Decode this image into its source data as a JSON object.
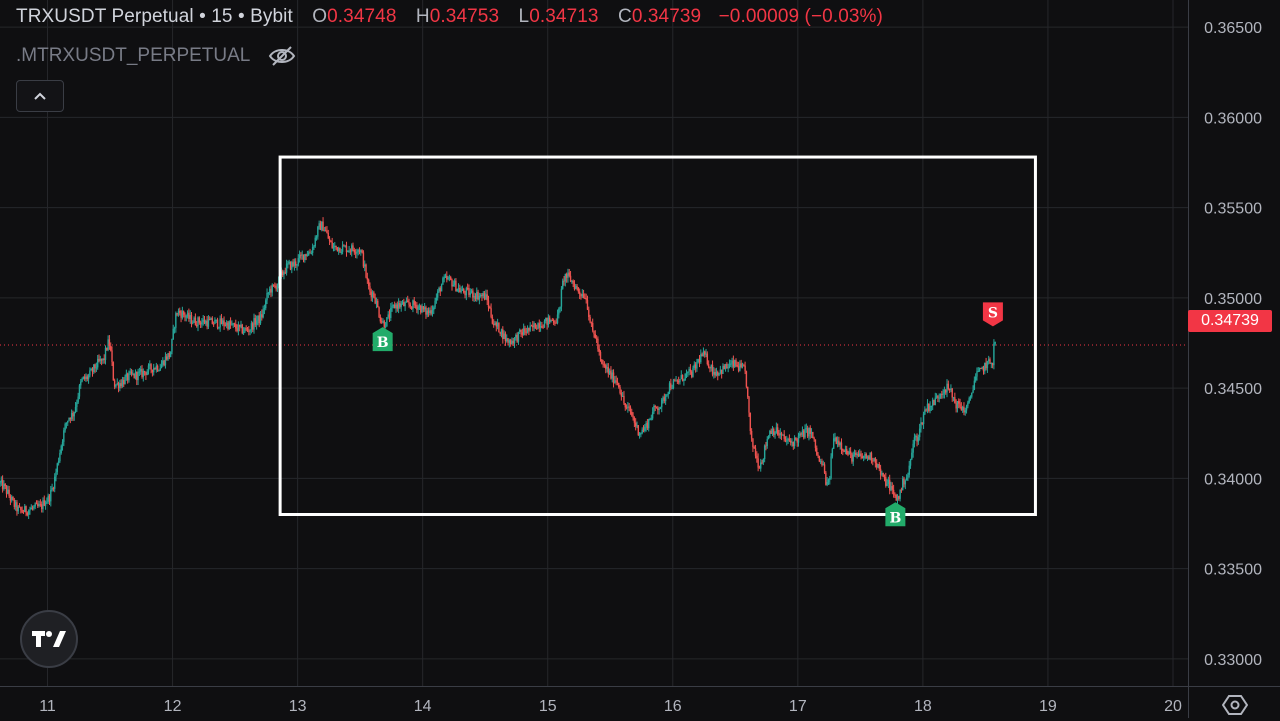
{
  "header": {
    "symbol": "TRXUSDT Perpetual",
    "interval": "15",
    "exchange": "Bybit",
    "open_label": "O",
    "open": "0.34748",
    "high_label": "H",
    "high": "0.34753",
    "low_label": "L",
    "low": "0.34713",
    "close_label": "C",
    "close": "0.34739",
    "change": "−0.00009 (−0.03%)"
  },
  "indicator": {
    "name": ".MTRXUSDT_PERPETUAL",
    "visibility_icon": "eye-slash-icon"
  },
  "collapse_icon": "chevron-up-icon",
  "logo_icon": "tradingview-logo-icon",
  "settings_icon": "settings-icon",
  "last_price_label": "0.34739",
  "colors": {
    "up": "#26a69a",
    "down": "#ef5350",
    "price_line": "#f23645",
    "grid": "#26272b",
    "buy": "#22ab6a",
    "sell": "#f23645",
    "box": "#ffffff"
  },
  "chart_data": {
    "type": "candlestick",
    "y_ticks": [
      "0.36500",
      "0.36000",
      "0.35500",
      "0.35000",
      "0.34500",
      "0.34000",
      "0.33500",
      "0.33000"
    ],
    "x_ticks": [
      "11",
      "12",
      "13",
      "14",
      "15",
      "16",
      "17",
      "18",
      "19",
      "20"
    ],
    "ylim": [
      0.3285,
      0.3665
    ],
    "xlim": [
      10.62,
      20.12
    ],
    "last_price": 0.34739,
    "path": [
      [
        10.62,
        0.3397
      ],
      [
        10.8,
        0.3382
      ],
      [
        10.95,
        0.3384
      ],
      [
        11.0,
        0.3388
      ],
      [
        11.2,
        0.3435
      ],
      [
        11.3,
        0.3455
      ],
      [
        11.45,
        0.3465
      ],
      [
        11.5,
        0.3475
      ],
      [
        11.55,
        0.3452
      ],
      [
        11.7,
        0.3457
      ],
      [
        11.9,
        0.3462
      ],
      [
        11.98,
        0.3468
      ],
      [
        12.05,
        0.3492
      ],
      [
        12.2,
        0.3487
      ],
      [
        12.4,
        0.3486
      ],
      [
        12.6,
        0.3482
      ],
      [
        12.7,
        0.3488
      ],
      [
        12.8,
        0.3505
      ],
      [
        12.95,
        0.3518
      ],
      [
        13.1,
        0.3525
      ],
      [
        13.2,
        0.354
      ],
      [
        13.3,
        0.3528
      ],
      [
        13.5,
        0.3527
      ],
      [
        13.6,
        0.3503
      ],
      [
        13.7,
        0.3486
      ],
      [
        13.8,
        0.3496
      ],
      [
        13.95,
        0.3496
      ],
      [
        14.05,
        0.3492
      ],
      [
        14.2,
        0.351
      ],
      [
        14.35,
        0.3503
      ],
      [
        14.5,
        0.3501
      ],
      [
        14.6,
        0.3484
      ],
      [
        14.7,
        0.3476
      ],
      [
        14.85,
        0.3482
      ],
      [
        14.95,
        0.3486
      ],
      [
        15.08,
        0.3488
      ],
      [
        15.15,
        0.3512
      ],
      [
        15.3,
        0.3502
      ],
      [
        15.38,
        0.348
      ],
      [
        15.45,
        0.3462
      ],
      [
        15.55,
        0.3455
      ],
      [
        15.65,
        0.3438
      ],
      [
        15.75,
        0.3426
      ],
      [
        15.9,
        0.344
      ],
      [
        16.0,
        0.3452
      ],
      [
        16.15,
        0.3458
      ],
      [
        16.25,
        0.3468
      ],
      [
        16.35,
        0.3459
      ],
      [
        16.5,
        0.3463
      ],
      [
        16.58,
        0.346
      ],
      [
        16.65,
        0.3418
      ],
      [
        16.7,
        0.3408
      ],
      [
        16.8,
        0.3427
      ],
      [
        16.95,
        0.342
      ],
      [
        17.1,
        0.3426
      ],
      [
        17.2,
        0.3408
      ],
      [
        17.25,
        0.3396
      ],
      [
        17.3,
        0.3422
      ],
      [
        17.45,
        0.3412
      ],
      [
        17.6,
        0.3412
      ],
      [
        17.72,
        0.3398
      ],
      [
        17.8,
        0.3389
      ],
      [
        17.88,
        0.3401
      ],
      [
        17.95,
        0.3422
      ],
      [
        18.05,
        0.344
      ],
      [
        18.2,
        0.345
      ],
      [
        18.3,
        0.344
      ],
      [
        18.35,
        0.3438
      ],
      [
        18.45,
        0.3458
      ],
      [
        18.52,
        0.3463
      ],
      [
        18.57,
        0.3465
      ],
      [
        18.58,
        0.3474
      ]
    ],
    "markers": [
      {
        "label": "B",
        "x": 13.68,
        "price": 0.3486,
        "side": "below"
      },
      {
        "label": "B",
        "x": 17.78,
        "price": 0.3389,
        "side": "below"
      },
      {
        "label": "S",
        "x": 18.56,
        "price": 0.3482,
        "side": "above"
      }
    ],
    "rectangle": {
      "x_start": 12.86,
      "x_end": 18.9,
      "y_top": 0.3578,
      "y_bottom": 0.338
    }
  }
}
